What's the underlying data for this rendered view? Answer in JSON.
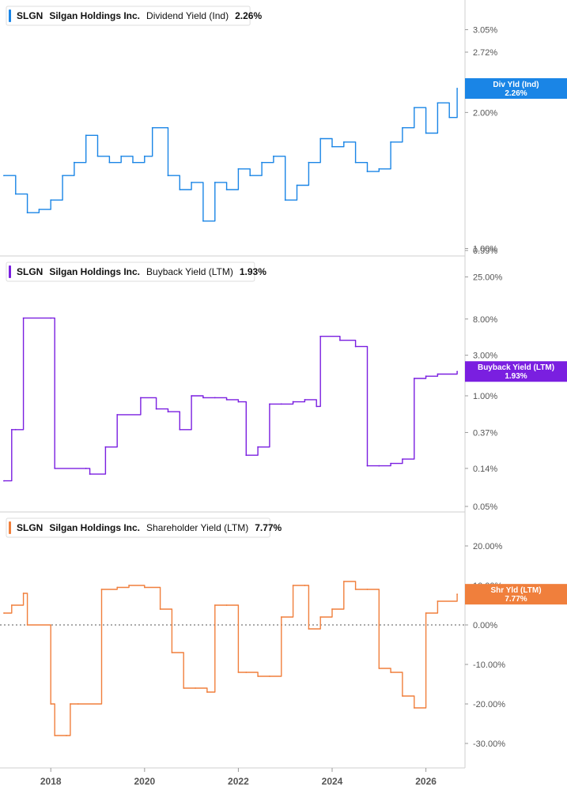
{
  "chart_data": [
    {
      "type": "line",
      "ticker": "SLGN",
      "company": "Silgan Holdings Inc.",
      "metric": "Dividend Yield (Ind)",
      "current_value": "2.26%",
      "tag_label": "Div Yld (Ind)",
      "tag_value": "2.26%",
      "color": "#1a85e6",
      "scale": "log",
      "ylim": [
        0.99,
        3.3
      ],
      "yticks": [
        "3.05%",
        "2.72%",
        "2.00%",
        "1.00%",
        "0.99%"
      ],
      "ytick_values": [
        3.05,
        2.72,
        2.0,
        1.0,
        0.99
      ],
      "x": [
        "2017-01",
        "2017-04",
        "2017-07",
        "2017-10",
        "2018-01",
        "2018-04",
        "2018-07",
        "2018-10",
        "2019-01",
        "2019-04",
        "2019-07",
        "2019-10",
        "2020-01",
        "2020-03",
        "2020-07",
        "2020-10",
        "2021-01",
        "2021-04",
        "2021-07",
        "2021-10",
        "2022-01",
        "2022-04",
        "2022-07",
        "2022-10",
        "2023-01",
        "2023-04",
        "2023-07",
        "2023-10",
        "2024-01",
        "2024-04",
        "2024-07",
        "2024-10",
        "2025-01",
        "2025-04",
        "2025-07",
        "2025-10",
        "2026-01",
        "2026-04",
        "2026-07",
        "2026-09"
      ],
      "values": [
        1.45,
        1.32,
        1.2,
        1.22,
        1.28,
        1.45,
        1.55,
        1.78,
        1.6,
        1.55,
        1.6,
        1.55,
        1.6,
        1.85,
        1.45,
        1.35,
        1.4,
        1.15,
        1.4,
        1.35,
        1.5,
        1.45,
        1.55,
        1.6,
        1.28,
        1.38,
        1.55,
        1.75,
        1.68,
        1.72,
        1.55,
        1.48,
        1.5,
        1.72,
        1.85,
        2.05,
        1.8,
        2.1,
        1.95,
        2.26
      ]
    },
    {
      "type": "line",
      "ticker": "SLGN",
      "company": "Silgan Holdings Inc.",
      "metric": "Buyback Yield (LTM)",
      "current_value": "1.93%",
      "tag_label": "Buyback Yield (LTM)",
      "tag_value": "1.93%",
      "color": "#7a1fe0",
      "scale": "log",
      "ylim": [
        0.05,
        30
      ],
      "yticks": [
        "25.00%",
        "8.00%",
        "3.00%",
        "1.00%",
        "0.37%",
        "0.14%",
        "0.05%"
      ],
      "ytick_values": [
        25,
        8,
        3,
        1,
        0.37,
        0.14,
        0.05
      ],
      "x": [
        "2017-01",
        "2017-03",
        "2017-04",
        "2017-06",
        "2018-01",
        "2018-02",
        "2018-10",
        "2018-11",
        "2019-03",
        "2019-06",
        "2019-12",
        "2020-04",
        "2020-07",
        "2020-10",
        "2021-01",
        "2021-04",
        "2021-07",
        "2021-10",
        "2022-01",
        "2022-03",
        "2022-06",
        "2022-09",
        "2022-12",
        "2023-03",
        "2023-06",
        "2023-09",
        "2023-10",
        "2024-03",
        "2024-07",
        "2024-10",
        "2025-01",
        "2025-04",
        "2025-07",
        "2025-10",
        "2026-01",
        "2026-04",
        "2026-09"
      ],
      "values": [
        0.1,
        0.4,
        0.4,
        8.2,
        8.2,
        0.14,
        0.14,
        0.12,
        0.25,
        0.6,
        0.95,
        0.7,
        0.65,
        0.4,
        1.0,
        0.95,
        0.95,
        0.9,
        0.85,
        0.2,
        0.25,
        0.8,
        0.8,
        0.85,
        0.9,
        0.75,
        5.0,
        4.5,
        3.8,
        0.15,
        0.15,
        0.16,
        0.18,
        1.6,
        1.7,
        1.8,
        1.93
      ]
    },
    {
      "type": "line",
      "ticker": "SLGN",
      "company": "Silgan Holdings Inc.",
      "metric": "Shareholder Yield (LTM)",
      "current_value": "7.77%",
      "tag_label": "Shr Yld (LTM)",
      "tag_value": "7.77%",
      "color": "#f07f3c",
      "scale": "linear",
      "ylim": [
        -35,
        25
      ],
      "yticks": [
        "20.00%",
        "10.00%",
        "0.00%",
        "-10.00%",
        "-20.00%",
        "-30.00%"
      ],
      "ytick_values": [
        20,
        10,
        0,
        -10,
        -20,
        -30
      ],
      "zero_line": true,
      "x": [
        "2017-01",
        "2017-03",
        "2017-06",
        "2017-07",
        "2018-01",
        "2018-02",
        "2018-05",
        "2018-06",
        "2018-08",
        "2019-02",
        "2019-06",
        "2019-09",
        "2020-01",
        "2020-05",
        "2020-08",
        "2020-11",
        "2021-02",
        "2021-05",
        "2021-07",
        "2021-10",
        "2022-01",
        "2022-03",
        "2022-06",
        "2022-09",
        "2022-12",
        "2023-03",
        "2023-06",
        "2023-07",
        "2023-10",
        "2024-01",
        "2024-04",
        "2024-07",
        "2024-10",
        "2025-01",
        "2025-04",
        "2025-07",
        "2025-10",
        "2026-01",
        "2026-04",
        "2026-09"
      ],
      "values": [
        3,
        5,
        8,
        0,
        -20,
        -28,
        -28,
        -20,
        -20,
        9,
        9.5,
        10,
        9.5,
        4,
        -7,
        -16,
        -16,
        -17,
        5,
        5,
        -12,
        -12,
        -13,
        -13,
        2,
        10,
        10,
        -1,
        2,
        4,
        11,
        9,
        9,
        -11,
        -12,
        -18,
        -21,
        3,
        6,
        7.77
      ]
    }
  ],
  "x_axis": {
    "labels": [
      "2018",
      "2020",
      "2022",
      "2024",
      "2026"
    ],
    "label_dates": [
      "2018-01",
      "2020-01",
      "2022-01",
      "2024-01",
      "2026-01"
    ],
    "start": "2016-12",
    "end": "2026-11"
  }
}
